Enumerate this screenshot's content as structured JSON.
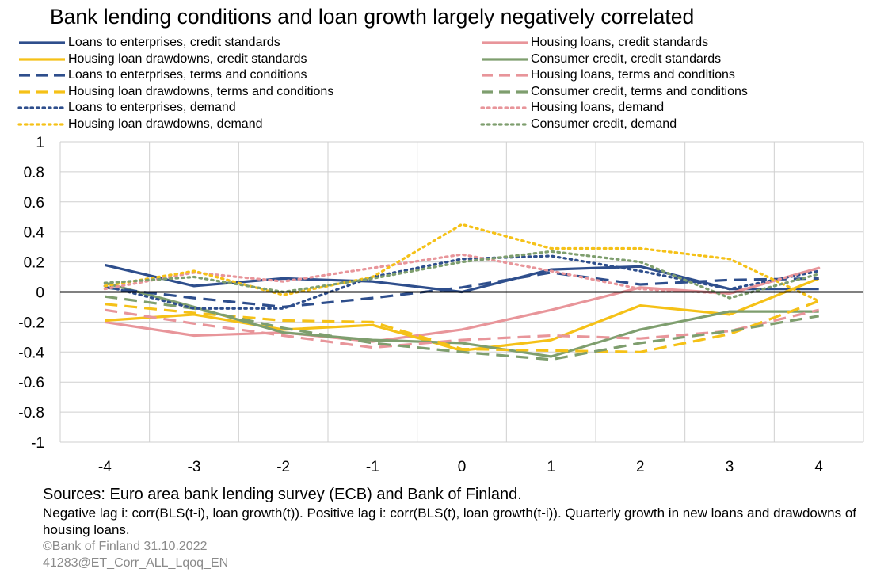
{
  "chart_data": {
    "type": "line",
    "title": "Bank lending conditions and loan growth largely negatively correlated",
    "x": [
      -4,
      -3,
      -2,
      -1,
      0,
      1,
      2,
      3,
      4
    ],
    "ylim": [
      -1,
      1
    ],
    "yticks": [
      1,
      0.8,
      0.6,
      0.4,
      0.2,
      0,
      -0.2,
      -0.4,
      -0.6,
      -0.8,
      -1
    ],
    "grid": true,
    "legend_position": "top",
    "series": [
      {
        "name": "Loans to enterprises, credit standards",
        "color": "#2E4E8C",
        "style": "solid",
        "values": [
          0.18,
          0.04,
          0.09,
          0.07,
          0.0,
          0.15,
          0.17,
          0.02,
          0.02
        ]
      },
      {
        "name": "Housing loans, credit standards",
        "color": "#E8959A",
        "style": "solid",
        "values": [
          -0.2,
          -0.29,
          -0.27,
          -0.33,
          -0.25,
          -0.12,
          0.03,
          -0.01,
          0.16
        ]
      },
      {
        "name": "Housing loan drawdowns, credit standards",
        "color": "#F5C117",
        "style": "solid",
        "values": [
          -0.19,
          -0.15,
          -0.25,
          -0.22,
          -0.39,
          -0.32,
          -0.09,
          -0.15,
          0.09
        ]
      },
      {
        "name": "Consumer credit, credit standards",
        "color": "#7E9E6E",
        "style": "solid",
        "values": [
          0.06,
          -0.1,
          -0.27,
          -0.32,
          -0.34,
          -0.43,
          -0.25,
          -0.13,
          -0.13
        ]
      },
      {
        "name": "Loans to enterprises, terms and conditions",
        "color": "#2E4E8C",
        "style": "dash",
        "values": [
          0.03,
          -0.04,
          -0.1,
          -0.04,
          0.03,
          0.13,
          0.05,
          0.08,
          0.09
        ]
      },
      {
        "name": "Housing loans, terms and conditions",
        "color": "#E8959A",
        "style": "dash",
        "values": [
          -0.12,
          -0.21,
          -0.29,
          -0.37,
          -0.32,
          -0.29,
          -0.31,
          -0.26,
          -0.12
        ]
      },
      {
        "name": "Housing loan drawdowns, terms and conditions",
        "color": "#F5C117",
        "style": "dash",
        "values": [
          -0.08,
          -0.14,
          -0.19,
          -0.2,
          -0.38,
          -0.39,
          -0.4,
          -0.28,
          -0.06
        ]
      },
      {
        "name": "Consumer credit, terms and conditions",
        "color": "#7E9E6E",
        "style": "dash",
        "values": [
          -0.03,
          -0.11,
          -0.24,
          -0.34,
          -0.4,
          -0.45,
          -0.34,
          -0.26,
          -0.16
        ]
      },
      {
        "name": "Loans to enterprises, demand",
        "color": "#2E4E8C",
        "style": "dot",
        "values": [
          0.04,
          -0.11,
          -0.11,
          0.1,
          0.22,
          0.24,
          0.14,
          0.02,
          0.14
        ]
      },
      {
        "name": "Housing loans, demand",
        "color": "#E8959A",
        "style": "dot",
        "values": [
          0.02,
          0.13,
          0.07,
          0.16,
          0.25,
          0.14,
          0.02,
          -0.01,
          0.16
        ]
      },
      {
        "name": "Housing loan drawdowns, demand",
        "color": "#F5C117",
        "style": "dot",
        "values": [
          0.04,
          0.14,
          -0.02,
          0.1,
          0.45,
          0.29,
          0.29,
          0.22,
          -0.06
        ]
      },
      {
        "name": "Consumer credit, demand",
        "color": "#7E9E6E",
        "style": "dot",
        "values": [
          0.06,
          0.1,
          0.0,
          0.09,
          0.2,
          0.27,
          0.2,
          -0.04,
          0.12
        ]
      }
    ]
  },
  "footer": {
    "sources": "Sources: Euro area bank lending survey (ECB) and Bank of Finland.",
    "note": "Negative lag i: corr(BLS(t-i), loan growth(t)). Positive lag i: corr(BLS(t), loan growth(t-i)). Quarterly growth in new loans and drawdowns of housing loans.",
    "copyright": "©Bank of Finland 31.10.2022",
    "code": "41283@ET_Corr_ALL_Lqoq_EN"
  }
}
